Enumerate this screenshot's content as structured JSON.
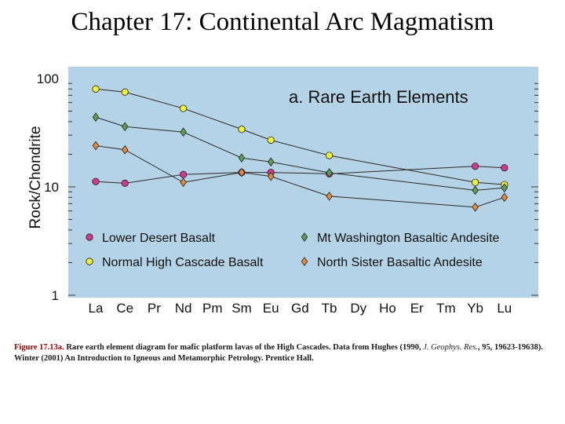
{
  "slide": {
    "title": "Chapter 17: Continental Arc Magmatism"
  },
  "caption": {
    "figure_label": "Figure 17.13a.",
    "text_before_journal": " Rare earth element diagram for mafic platform lavas of the High Cascades. Data from Hughes (1990, ",
    "journal": "J. Geophys. Res.",
    "text_after_journal": ", 95, 19623-19638).   Winter (2001) An Introduction to Igneous and Metamorphic Petrology. Prentice Hall."
  },
  "chart_data": {
    "type": "line",
    "title": "a. Rare Earth Elements",
    "ylabel": "Rock/Chondrite",
    "xlabel": "",
    "y_scale": "log",
    "ylim": [
      1,
      100
    ],
    "y_ticks": [
      "1",
      "10",
      "100"
    ],
    "categories": [
      "La",
      "Ce",
      "Pr",
      "Nd",
      "Pm",
      "Sm",
      "Eu",
      "Gd",
      "Tb",
      "Dy",
      "Ho",
      "Er",
      "Tm",
      "Yb",
      "Lu"
    ],
    "background": "#b5d3e6",
    "series": [
      {
        "name": "Lower Desert Basalt",
        "color": "#cc3b8f",
        "marker": "circle",
        "points": [
          [
            "La",
            11.2
          ],
          [
            "Ce",
            10.8
          ],
          [
            "Nd",
            13.0
          ],
          [
            "Sm",
            13.6
          ],
          [
            "Eu",
            13.6
          ],
          [
            "Tb",
            13.2
          ],
          [
            "Yb",
            15.5
          ],
          [
            "Lu",
            15.0
          ]
        ]
      },
      {
        "name": "Normal High Cascade Basalt",
        "color": "#f2f23a",
        "marker": "circle",
        "points": [
          [
            "La",
            80
          ],
          [
            "Ce",
            75
          ],
          [
            "Nd",
            53
          ],
          [
            "Sm",
            34
          ],
          [
            "Eu",
            27
          ],
          [
            "Tb",
            19.5
          ],
          [
            "Yb",
            11.0
          ],
          [
            "Lu",
            10.5
          ]
        ]
      },
      {
        "name": "Mt Washington Basaltic Andesite",
        "color": "#5e9e52",
        "marker": "diamond",
        "points": [
          [
            "La",
            44
          ],
          [
            "Ce",
            36
          ],
          [
            "Nd",
            32
          ],
          [
            "Sm",
            18.5
          ],
          [
            "Eu",
            17
          ],
          [
            "Tb",
            13.5
          ],
          [
            "Yb",
            9.3
          ],
          [
            "Lu",
            9.8
          ]
        ]
      },
      {
        "name": "North Sister Basaltic Andesite",
        "color": "#e68a3a",
        "marker": "diamond",
        "points": [
          [
            "La",
            24
          ],
          [
            "Ce",
            22
          ],
          [
            "Nd",
            11.0
          ],
          [
            "Sm",
            13.6
          ],
          [
            "Eu",
            12.5
          ],
          [
            "Tb",
            8.2
          ],
          [
            "Yb",
            6.5
          ],
          [
            "Lu",
            8.0
          ]
        ]
      }
    ],
    "legend_placement": "bottom",
    "grid": false
  }
}
